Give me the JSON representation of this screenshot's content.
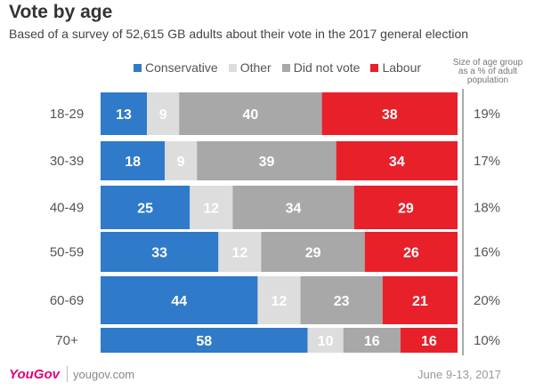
{
  "title": "Vote by age",
  "subtitle": "Based of a survey of 52,615 GB adults about their vote in the 2017 general election",
  "size_header": [
    "Size of age group",
    "as a % of adult",
    "population"
  ],
  "colors": {
    "conservative": "#2f7ac9",
    "other": "#dddddd",
    "did_not_vote": "#a8a8a8",
    "labour": "#e8202a"
  },
  "chart_data": {
    "type": "bar",
    "orientation": "horizontal",
    "stacked": true,
    "title": "Vote by age",
    "categories": [
      "18-29",
      "30-39",
      "40-49",
      "50-59",
      "60-69",
      "70+"
    ],
    "series": [
      {
        "name": "Conservative",
        "key": "conservative",
        "values": [
          13,
          18,
          25,
          33,
          44,
          58
        ]
      },
      {
        "name": "Other",
        "key": "other",
        "values": [
          9,
          9,
          12,
          12,
          12,
          10
        ]
      },
      {
        "name": "Did not vote",
        "key": "did_not_vote",
        "values": [
          40,
          39,
          34,
          29,
          23,
          16
        ]
      },
      {
        "name": "Labour",
        "key": "labour",
        "values": [
          38,
          34,
          29,
          26,
          21,
          16
        ]
      }
    ],
    "group_size_labels": [
      "19%",
      "17%",
      "18%",
      "16%",
      "20%",
      "10%"
    ],
    "legend_position": "top"
  },
  "footer": {
    "brand": "YouGov",
    "url": "yougov.com",
    "date": "June 9-13, 2017"
  }
}
